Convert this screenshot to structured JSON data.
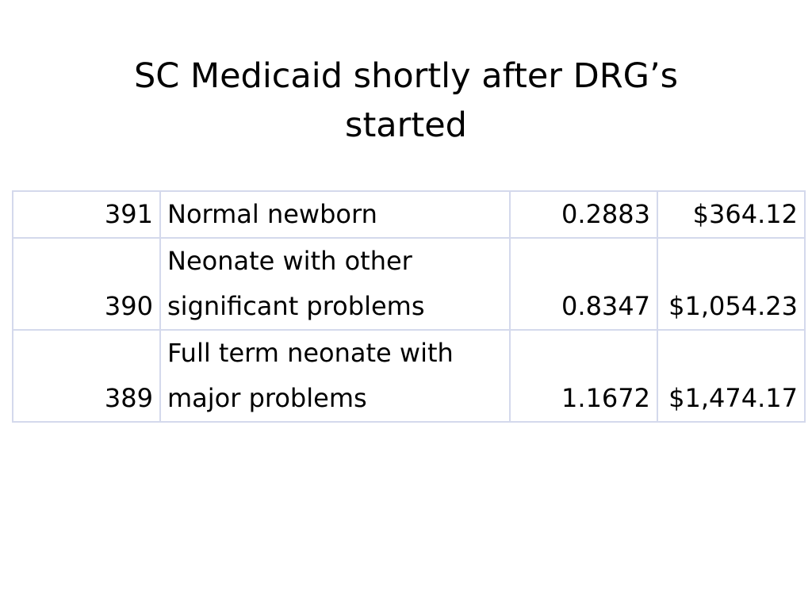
{
  "slide": {
    "title_line1": "SC Medicaid shortly after DRG’s",
    "title_line2": "started"
  },
  "table": {
    "rows": [
      {
        "code": "391",
        "description": "Normal newborn",
        "weight": "0.2883",
        "rate": "$364.12"
      },
      {
        "code": "390",
        "description": "Neonate with other significant problems",
        "weight": "0.8347",
        "rate": "$1,054.23"
      },
      {
        "code": "389",
        "description": "Full term neonate with major problems",
        "weight": "1.1672",
        "rate": "$1,474.17"
      }
    ]
  }
}
